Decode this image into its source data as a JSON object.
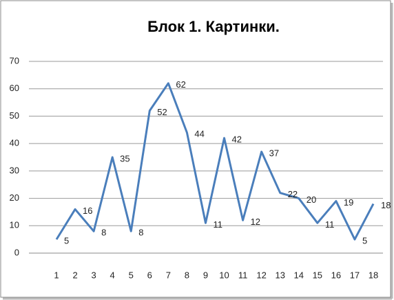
{
  "chart_data": {
    "type": "line",
    "title": "Блок 1. Картинки.",
    "categories": [
      1,
      2,
      3,
      4,
      5,
      6,
      7,
      8,
      9,
      10,
      11,
      12,
      13,
      14,
      15,
      16,
      17,
      18
    ],
    "values": [
      5,
      16,
      8,
      35,
      8,
      52,
      62,
      44,
      11,
      42,
      12,
      37,
      22,
      20,
      11,
      19,
      5,
      18
    ],
    "color": "#4a7ebb",
    "ylim": [
      0,
      70
    ],
    "yticks": [
      0,
      10,
      20,
      30,
      40,
      50,
      60,
      70
    ],
    "grid": true
  }
}
